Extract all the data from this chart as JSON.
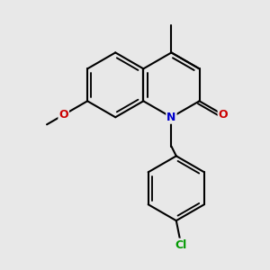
{
  "background_color": "#e8e8e8",
  "bond_color": "#000000",
  "line_width": 1.5,
  "figsize": [
    3.0,
    3.0
  ],
  "dpi": 100,
  "atoms": {
    "N": {
      "color": "#0000cc",
      "fontsize": 9
    },
    "O": {
      "color": "#cc0000",
      "fontsize": 9
    },
    "Cl": {
      "color": "#009900",
      "fontsize": 9
    }
  },
  "label_fontsize": 8.5
}
